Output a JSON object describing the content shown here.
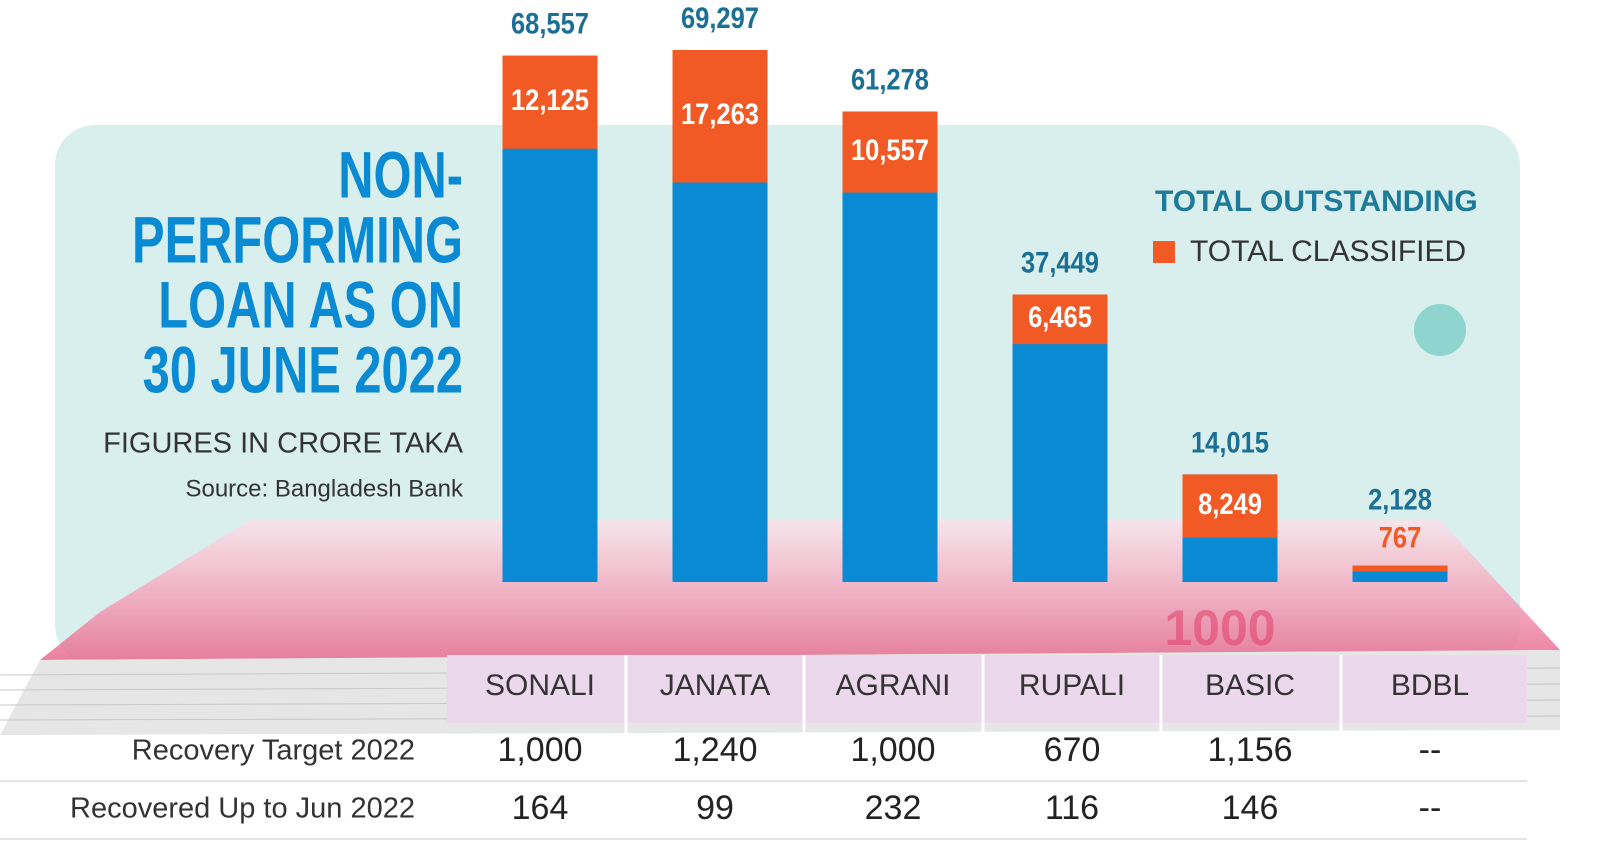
{
  "chart_data": {
    "type": "bar",
    "title_lines": [
      "NON-",
      "PERFORMING",
      "LOAN AS ON",
      "30 JUNE 2022"
    ],
    "subtitle": "FIGURES IN CRORE TAKA",
    "source": "Source: Bangladesh Bank",
    "categories": [
      "SONALI",
      "JANATA",
      "AGRANI",
      "RUPALI",
      "BASIC",
      "BDBL"
    ],
    "series": [
      {
        "name": "TOTAL OUTSTANDING",
        "color": "#0a8ad3",
        "values": [
          68557,
          69297,
          61278,
          37449,
          14015,
          2128
        ],
        "value_labels": [
          "68,557",
          "69,297",
          "61,278",
          "37,449",
          "14,015",
          "2,128"
        ]
      },
      {
        "name": "TOTAL CLASSIFIED",
        "color": "#f15a24",
        "values": [
          12125,
          17263,
          10557,
          6465,
          8249,
          767
        ],
        "value_labels": [
          "12,125",
          "17,263",
          "10,557",
          "6,465",
          "8,249",
          "767"
        ]
      }
    ]
  },
  "table": {
    "rows": [
      {
        "label": "Recovery Target 2022",
        "values": [
          "1,000",
          "1,240",
          "1,000",
          "670",
          "1,156",
          "--"
        ]
      },
      {
        "label": "Recovered Up to Jun 2022",
        "values": [
          "164",
          "99",
          "232",
          "116",
          "146",
          "--"
        ]
      }
    ]
  }
}
